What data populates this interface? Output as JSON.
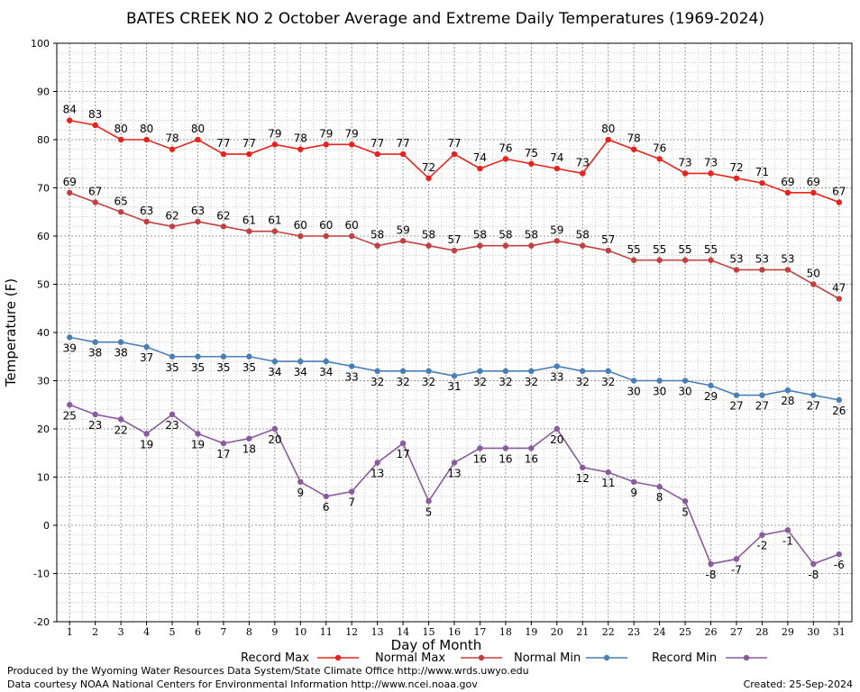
{
  "chart_data": {
    "type": "line",
    "title": "BATES CREEK NO 2 October Average and Extreme Daily Temperatures (1969-2024)",
    "xlabel": "Day of Month",
    "ylabel": "Temperature (F)",
    "x": [
      1,
      2,
      3,
      4,
      5,
      6,
      7,
      8,
      9,
      10,
      11,
      12,
      13,
      14,
      15,
      16,
      17,
      18,
      19,
      20,
      21,
      22,
      23,
      24,
      25,
      26,
      27,
      28,
      29,
      30,
      31
    ],
    "ylim": [
      -20,
      100
    ],
    "yticks": [
      "-20",
      "-10",
      "0",
      "10",
      "20",
      "30",
      "40",
      "50",
      "60",
      "70",
      "80",
      "90",
      "100"
    ],
    "grid": true,
    "legend_position": "bottom",
    "series": [
      {
        "name": "Record Max",
        "color": "#e8231e",
        "label_pos": "above",
        "values": [
          84,
          83,
          80,
          80,
          78,
          80,
          77,
          77,
          79,
          78,
          79,
          79,
          77,
          77,
          72,
          77,
          74,
          76,
          75,
          74,
          73,
          80,
          78,
          76,
          73,
          73,
          72,
          71,
          69,
          69,
          67
        ]
      },
      {
        "name": "Normal Max",
        "color": "#c0413f",
        "label_pos": "above",
        "values": [
          69,
          67,
          65,
          63,
          62,
          63,
          62,
          61,
          61,
          60,
          60,
          60,
          58,
          59,
          58,
          57,
          58,
          58,
          58,
          59,
          58,
          57,
          55,
          55,
          55,
          55,
          53,
          53,
          53,
          50,
          47
        ]
      },
      {
        "name": "Normal Min",
        "color": "#4a7fb5",
        "label_pos": "below",
        "values": [
          39,
          38,
          38,
          37,
          35,
          35,
          35,
          35,
          34,
          34,
          34,
          33,
          32,
          32,
          32,
          31,
          32,
          32,
          32,
          33,
          32,
          32,
          30,
          30,
          30,
          29,
          27,
          27,
          28,
          27,
          26
        ]
      },
      {
        "name": "Record Min",
        "color": "#8a5a9e",
        "label_pos": "below",
        "values": [
          25,
          23,
          22,
          19,
          23,
          19,
          17,
          18,
          20,
          9,
          6,
          7,
          13,
          17,
          5,
          13,
          16,
          16,
          16,
          20,
          12,
          11,
          9,
          8,
          5,
          -8,
          -7,
          -2,
          -1,
          -8,
          -6
        ]
      }
    ]
  },
  "footer": {
    "credit_line1": "Produced by the Wyoming Water Resources Data System/State Climate Office http://www.wrds.uwyo.edu",
    "credit_line2": "Data courtesy NOAA National Centers for Environmental Information http://www.ncei.noaa.gov",
    "created": "Created:  25-Sep-2024"
  }
}
